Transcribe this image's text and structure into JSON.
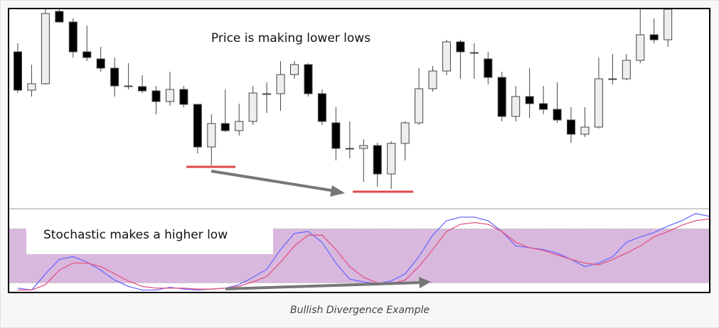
{
  "chart_data": [
    {
      "type": "candlestick",
      "annotation": "Price is making lower lows",
      "open": [
        220,
        166,
        175,
        277,
        262,
        220,
        210,
        197,
        172,
        171,
        165,
        150,
        167,
        146,
        86,
        119,
        109,
        122,
        161,
        161,
        188,
        202,
        161,
        120,
        84,
        84,
        88,
        48,
        91,
        120,
        168,
        193,
        234,
        219,
        210,
        184,
        129,
        157,
        147,
        139,
        124,
        104,
        114,
        182,
        182,
        208,
        244,
        237
      ],
      "close": [
        166,
        175,
        274,
        262,
        220,
        212,
        197,
        172,
        171,
        165,
        150,
        167,
        146,
        86,
        119,
        109,
        122,
        162,
        161,
        188,
        202,
        161,
        122,
        84,
        84,
        88,
        48,
        91,
        120,
        168,
        193,
        234,
        220,
        219,
        184,
        129,
        157,
        147,
        139,
        124,
        104,
        114,
        182,
        182,
        208,
        244,
        237,
        280
      ],
      "high": [
        232,
        202,
        280,
        280,
        267,
        257,
        227,
        212,
        204,
        187,
        172,
        192,
        172,
        146,
        132,
        167,
        147,
        172,
        177,
        207,
        207,
        204,
        167,
        142,
        122,
        97,
        92,
        94,
        122,
        197,
        200,
        237,
        237,
        232,
        220,
        192,
        172,
        197,
        172,
        177,
        142,
        142,
        212,
        217,
        217,
        280,
        267,
        280
      ],
      "low": [
        162,
        157,
        174,
        262,
        212,
        207,
        192,
        157,
        167,
        162,
        132,
        144,
        142,
        77,
        60,
        107,
        102,
        117,
        134,
        137,
        182,
        157,
        117,
        67,
        70,
        37,
        30,
        27,
        67,
        117,
        164,
        187,
        182,
        182,
        174,
        122,
        122,
        127,
        132,
        120,
        92,
        100,
        112,
        174,
        180,
        204,
        232,
        227
      ],
      "up_color": "#eeeeee",
      "down_color": "#000000",
      "ylim": [
        0,
        280
      ]
    },
    {
      "type": "line",
      "annotation": "Stochastic makes a higher low",
      "band": [
        20,
        80
      ],
      "band_color": "#d9b8de",
      "series": [
        {
          "color": "#6b6bff",
          "values": [
            14,
            12,
            30,
            46,
            49,
            43,
            34,
            23,
            16,
            12,
            12,
            15,
            13,
            12,
            13,
            14,
            18,
            26,
            35,
            57,
            75,
            77,
            65,
            42,
            24,
            21,
            19,
            22,
            30,
            49,
            73,
            89,
            93,
            93,
            89,
            77,
            61,
            59,
            57,
            53,
            46,
            38,
            42,
            49,
            65,
            71,
            76,
            83,
            89,
            97,
            94
          ]
        },
        {
          "color": "#e2557f",
          "values": [
            12,
            12,
            18,
            34,
            42,
            42,
            38,
            30,
            22,
            16,
            14,
            14,
            14,
            13,
            13,
            14,
            16,
            21,
            27,
            43,
            61,
            73,
            73,
            57,
            38,
            26,
            20,
            19,
            23,
            38,
            57,
            77,
            85,
            87,
            85,
            77,
            65,
            59,
            56,
            51,
            46,
            42,
            40,
            46,
            53,
            61,
            71,
            77,
            84,
            89,
            91
          ]
        }
      ],
      "ylim": [
        10,
        100
      ]
    }
  ],
  "caption": "Bullish Divergence Example"
}
